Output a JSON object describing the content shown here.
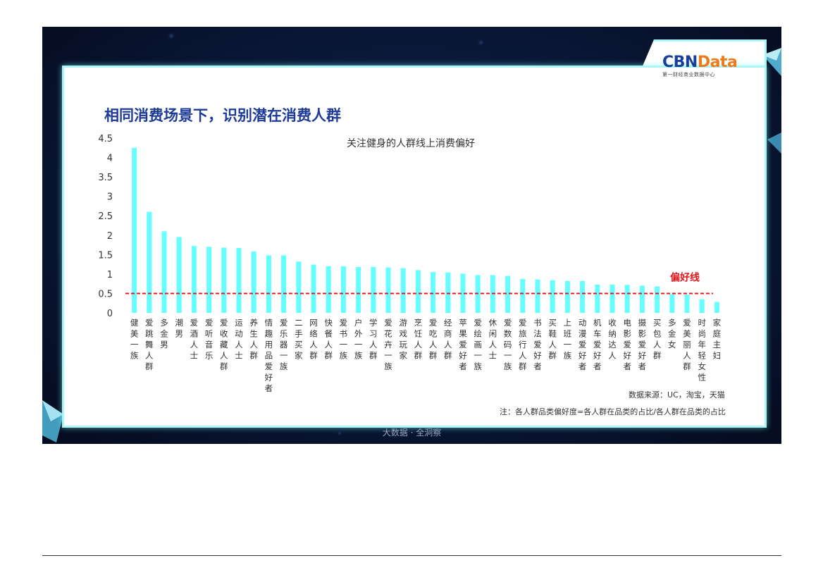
{
  "slide": {
    "title": "相同消费场景下，识别潜在消费人群",
    "footer": "大数据 · 全洞察",
    "logo_main_a": "CBN",
    "logo_main_b": "Data",
    "logo_sub": "第一财经商业数据中心",
    "source_note": "数据来源：UC，淘宝，天猫",
    "formula_note": "注：各人群品类偏好度=各人群在品类的占比/各人群在品类的占比"
  },
  "colors": {
    "bar": "#66ffff",
    "threshold": "#e8151b",
    "title": "#1c3a96",
    "frame": "#aef6f6"
  },
  "chart_data": {
    "type": "bar",
    "title": "关注健身的人群线上消费偏好",
    "categories": [
      "健美一族",
      "爱跳舞人群",
      "多金男",
      "潮男",
      "爱酒人士",
      "爱听音乐",
      "爱收藏人群",
      "运动人士",
      "养生人群",
      "情趣用品爱好者",
      "爱乐器一族",
      "二手买家",
      "网络人群",
      "快餐人群",
      "爱书一族",
      "户外一族",
      "学习人群",
      "爱花卉一族",
      "游戏玩家",
      "烹饪人群",
      "爱吃人群",
      "经商人群",
      "苹果爱好者",
      "爱绘画一族",
      "休闲人士",
      "爱数码一族",
      "爱旅行人群",
      "书法爱好者",
      "买鞋人群",
      "上班一族",
      "动漫爱好者",
      "机车爱好者",
      "收纳达人",
      "电影爱好者",
      "摄影爱好者",
      "买包人群",
      "多金女",
      "爱美丽人群",
      "时尚年轻女性",
      "家庭主妇"
    ],
    "values": [
      4.25,
      2.6,
      2.1,
      1.95,
      1.72,
      1.7,
      1.68,
      1.67,
      1.58,
      1.48,
      1.48,
      1.32,
      1.24,
      1.2,
      1.2,
      1.18,
      1.18,
      1.17,
      1.15,
      1.1,
      1.05,
      1.04,
      1.01,
      0.97,
      0.97,
      0.95,
      0.87,
      0.86,
      0.84,
      0.82,
      0.82,
      0.73,
      0.73,
      0.72,
      0.7,
      0.68,
      0.48,
      0.47,
      0.35,
      0.28
    ],
    "ylim": [
      0,
      4.5
    ],
    "yticks": [
      "0",
      "0.5",
      "1",
      "1.5",
      "2",
      "2.5",
      "3",
      "3.5",
      "4",
      "4.5"
    ],
    "threshold": {
      "value": 0.5,
      "label": "偏好线"
    }
  }
}
